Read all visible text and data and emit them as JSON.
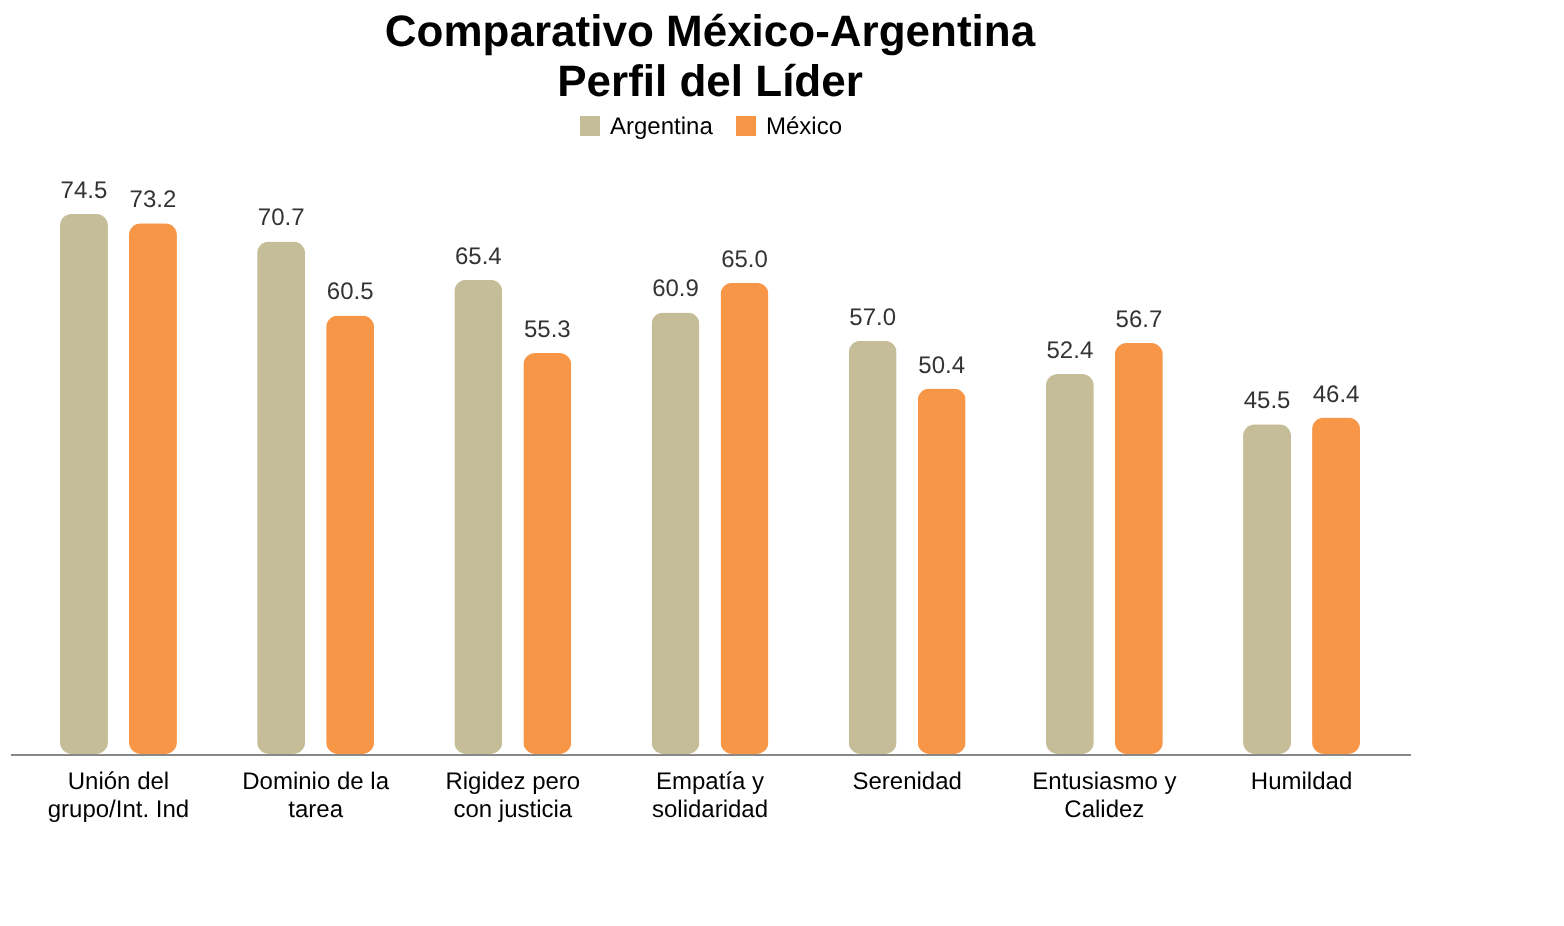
{
  "chart_data": {
    "type": "bar",
    "title": "Comparativo México-Argentina",
    "subtitle": "Perfil del Líder",
    "categories": [
      "Unión del grupo/Int. Ind",
      "Dominio de la tarea",
      "Rigidez pero con justicia",
      "Empatía y solidaridad",
      "Serenidad",
      "Entusiasmo y Calidez",
      "Humildad"
    ],
    "series": [
      {
        "name": "Argentina",
        "color": "#c4bd97",
        "values": [
          74.5,
          70.7,
          65.4,
          60.9,
          57.0,
          52.4,
          45.5
        ],
        "value_labels": [
          "74.5",
          "70.7",
          "65.4",
          "60.9",
          "57.0",
          "52.4",
          "45.5"
        ]
      },
      {
        "name": "México",
        "color": "#f79646",
        "values": [
          73.2,
          60.5,
          55.3,
          65.0,
          50.4,
          56.7,
          46.4
        ],
        "value_labels": [
          "73.2",
          "60.5",
          "55.3",
          "65.0",
          "50.4",
          "56.7",
          "46.4"
        ]
      }
    ],
    "legend": "top",
    "grid": false
  }
}
